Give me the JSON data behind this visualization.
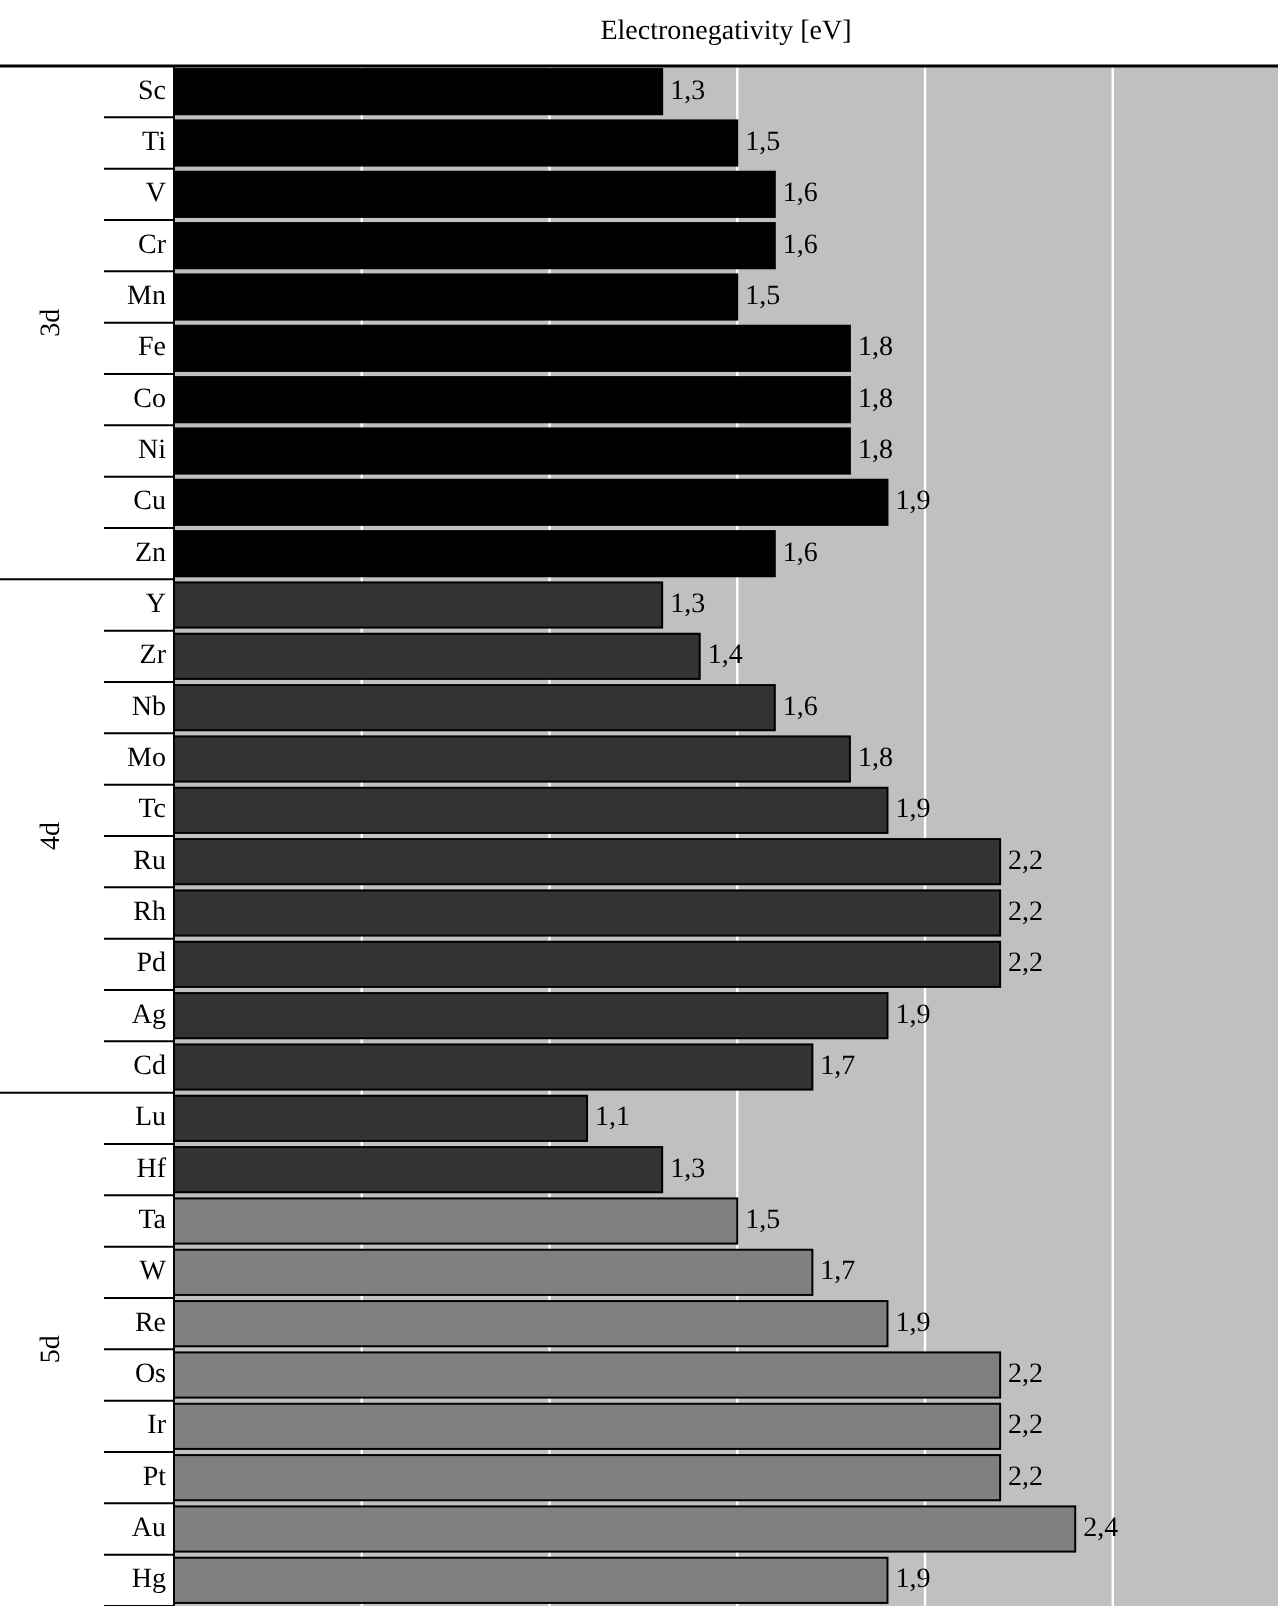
{
  "chart_data": {
    "type": "bar",
    "orientation": "horizontal",
    "xlabel": "Electronegativity [eV]",
    "categories": [
      "Sc",
      "Ti",
      "V",
      "Cr",
      "Mn",
      "Fe",
      "Co",
      "Ni",
      "Cu",
      "Zn",
      "Y",
      "Zr",
      "Nb",
      "Mo",
      "Tc",
      "Ru",
      "Rh",
      "Pd",
      "Ag",
      "Cd",
      "Lu",
      "Hf",
      "Ta",
      "W",
      "Re",
      "Os",
      "Ir",
      "Pt",
      "Au",
      "Hg"
    ],
    "values": [
      1.3,
      1.5,
      1.6,
      1.6,
      1.5,
      1.8,
      1.8,
      1.8,
      1.9,
      1.6,
      1.3,
      1.4,
      1.6,
      1.8,
      1.9,
      2.2,
      2.2,
      2.2,
      1.9,
      1.7,
      1.1,
      1.3,
      1.5,
      1.7,
      1.9,
      2.2,
      2.2,
      2.2,
      2.4,
      1.9
    ],
    "value_labels": [
      "1,3",
      "1,5",
      "1,6",
      "1,6",
      "1,5",
      "1,8",
      "1,8",
      "1,8",
      "1,9",
      "1,6",
      "1,3",
      "1,4",
      "1,6",
      "1,8",
      "1,9",
      "2,2",
      "2,2",
      "2,2",
      "1,9",
      "1,7",
      "1,1",
      "1,3",
      "1,5",
      "1,7",
      "1,9",
      "2,2",
      "2,2",
      "2,2",
      "2,4",
      "1,9"
    ],
    "colors": [
      "#000000",
      "#000000",
      "#000000",
      "#000000",
      "#000000",
      "#000000",
      "#000000",
      "#000000",
      "#000000",
      "#000000",
      "#333333",
      "#333333",
      "#333333",
      "#333333",
      "#333333",
      "#333333",
      "#333333",
      "#333333",
      "#333333",
      "#333333",
      "#333333",
      "#333333",
      "#808080",
      "#808080",
      "#808080",
      "#808080",
      "#808080",
      "#808080",
      "#808080",
      "#808080"
    ],
    "annotations": [
      "3d",
      "4d",
      "5d"
    ],
    "xlim": [
      0,
      2.94
    ],
    "xticks": [
      {
        "value": 0.5,
        "label": null
      },
      {
        "value": 1,
        "label": null
      },
      {
        "value": 1.5,
        "label": null
      },
      {
        "value": 2,
        "label": null
      },
      {
        "value": 2.5,
        "label": null
      }
    ],
    "grid": "x"
  }
}
